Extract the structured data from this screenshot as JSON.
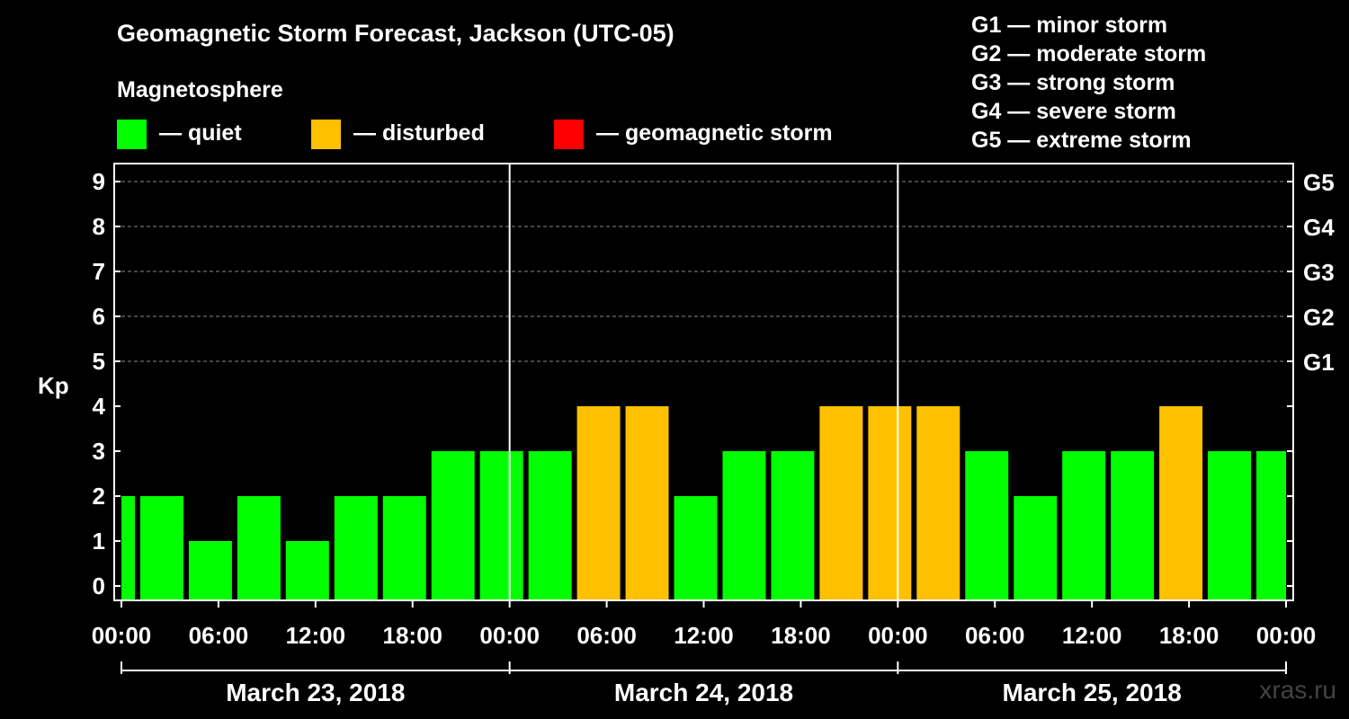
{
  "title": "Geomagnetic Storm Forecast, Jackson (UTC-05)",
  "magnetosphere_label": "Magnetosphere",
  "legend": [
    {
      "label": "— quiet",
      "color": "#00ff00"
    },
    {
      "label": "— disturbed",
      "color": "#ffc000"
    },
    {
      "label": "— geomagnetic storm",
      "color": "#ff0000"
    }
  ],
  "g_scale": [
    "G1 — minor storm",
    "G2 — moderate storm",
    "G3 — strong storm",
    "G4 — severe storm",
    "G5 — extreme storm"
  ],
  "watermark": "xras.ru",
  "colors": {
    "quiet": "#00ff00",
    "disturbed": "#ffc000",
    "storm": "#ff0000",
    "grid": "#888888"
  },
  "chart_data": {
    "type": "bar",
    "ylabel": "Kp",
    "ylim": [
      0,
      9
    ],
    "yticks": [
      0,
      1,
      2,
      3,
      4,
      5,
      6,
      7,
      8,
      9
    ],
    "right_ticks": [
      {
        "kp": 5,
        "label": "G1"
      },
      {
        "kp": 6,
        "label": "G2"
      },
      {
        "kp": 7,
        "label": "G3"
      },
      {
        "kp": 8,
        "label": "G4"
      },
      {
        "kp": 9,
        "label": "G5"
      }
    ],
    "x_range_hours": [
      0,
      72
    ],
    "xticks": [
      "00:00",
      "06:00",
      "12:00",
      "18:00",
      "00:00",
      "06:00",
      "12:00",
      "18:00",
      "00:00",
      "06:00",
      "12:00",
      "18:00",
      "00:00"
    ],
    "days": [
      "March 23, 2018",
      "March 24, 2018",
      "March 25, 2018"
    ],
    "bar_interval_hours": 3,
    "bar_start_hours": -2,
    "values": [
      2,
      2,
      1,
      2,
      1,
      2,
      2,
      3,
      3,
      3,
      4,
      4,
      2,
      3,
      3,
      4,
      4,
      4,
      3,
      2,
      3,
      3,
      4,
      3,
      3
    ],
    "status": [
      "quiet",
      "quiet",
      "quiet",
      "quiet",
      "quiet",
      "quiet",
      "quiet",
      "quiet",
      "quiet",
      "quiet",
      "disturbed",
      "disturbed",
      "quiet",
      "quiet",
      "quiet",
      "disturbed",
      "disturbed",
      "disturbed",
      "quiet",
      "quiet",
      "quiet",
      "quiet",
      "disturbed",
      "quiet",
      "quiet"
    ],
    "grid": true
  }
}
